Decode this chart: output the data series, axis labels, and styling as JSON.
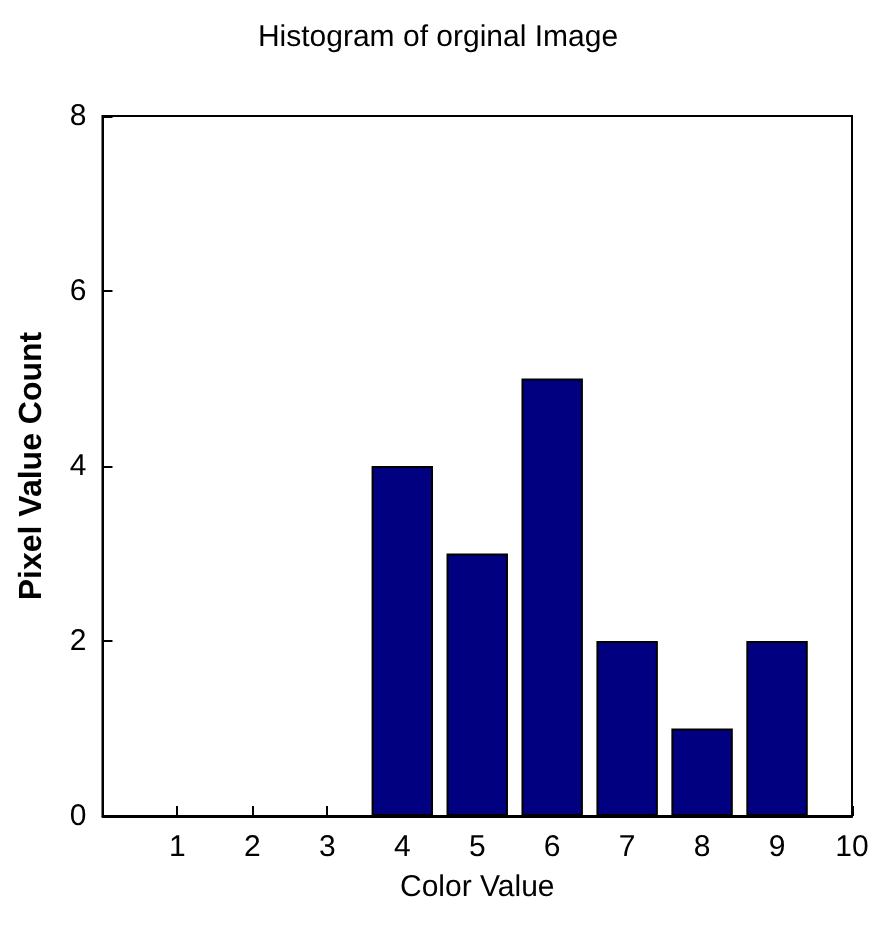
{
  "chart_data": {
    "type": "bar",
    "title": "Histogram of orginal Image",
    "xlabel": "Color Value",
    "ylabel": "Pixel Value Count",
    "x": [
      4,
      5,
      6,
      7,
      8,
      9
    ],
    "values": [
      4,
      3,
      5,
      2,
      1,
      2
    ],
    "color": "#000080",
    "xlim": [
      0,
      10
    ],
    "xticks": [
      1,
      2,
      3,
      4,
      5,
      6,
      7,
      8,
      9,
      10
    ],
    "ylim": [
      0,
      8
    ],
    "yticks": [
      0,
      2,
      4,
      6,
      8
    ],
    "grid": false
  }
}
